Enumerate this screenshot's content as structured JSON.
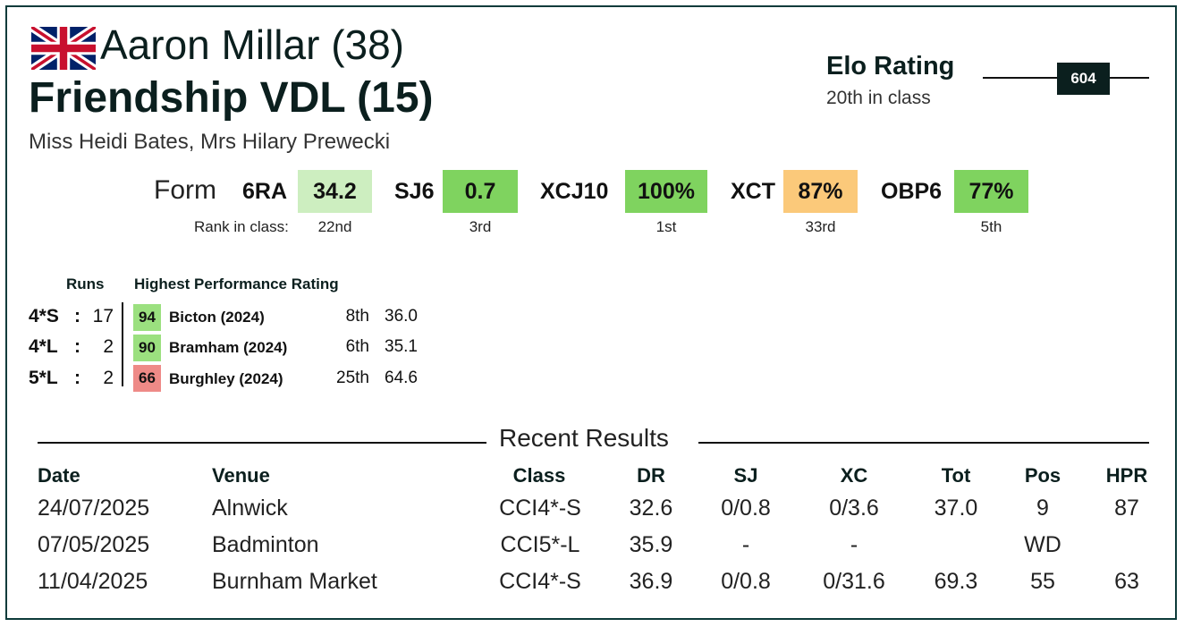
{
  "header": {
    "rider": "Aaron Millar (38)",
    "horse": "Friendship VDL (15)",
    "owners": "Miss Heidi Bates, Mrs Hilary Prewecki",
    "flag_icon": "uk-flag-icon"
  },
  "elo": {
    "title": "Elo Rating",
    "subtitle": "20th in class",
    "value": "604"
  },
  "form": {
    "label": "Form",
    "rank_label": "Rank in class:",
    "items": [
      {
        "name": "6RA",
        "value": "34.2",
        "rank": "22nd",
        "color": "#cdeec0"
      },
      {
        "name": "SJ6",
        "value": "0.7",
        "rank": "3rd",
        "color": "#7fd35f"
      },
      {
        "name": "XCJ10",
        "value": "100%",
        "rank": "1st",
        "color": "#7fd35f"
      },
      {
        "name": "XCT",
        "value": "87%",
        "rank": "33rd",
        "color": "#fbc97a"
      },
      {
        "name": "OBP6",
        "value": "77%",
        "rank": "5th",
        "color": "#7fd35f"
      }
    ]
  },
  "runs": {
    "runs_header": "Runs",
    "hpr_header": "Highest Performance Rating",
    "rows": [
      {
        "level": "4*S",
        "colon": ":",
        "count": "17",
        "hpr": "94",
        "event": "Bicton  (2024)",
        "pos": "8th",
        "score": "36.0",
        "color": "#9be07f"
      },
      {
        "level": "4*L",
        "colon": ":",
        "count": "2",
        "hpr": "90",
        "event": "Bramham  (2024)",
        "pos": "6th",
        "score": "35.1",
        "color": "#9be07f"
      },
      {
        "level": "5*L",
        "colon": ":",
        "count": "2",
        "hpr": "66",
        "event": "Burghley  (2024)",
        "pos": "25th",
        "score": "64.6",
        "color": "#ee8a87"
      }
    ]
  },
  "recent": {
    "title": "Recent Results",
    "headers": {
      "date": "Date",
      "venue": "Venue",
      "class": "Class",
      "dr": "DR",
      "sj": "SJ",
      "xc": "XC",
      "tot": "Tot",
      "pos": "Pos",
      "hpr": "HPR"
    },
    "rows": [
      {
        "date": "24/07/2025",
        "venue": "Alnwick",
        "class": "CCI4*-S",
        "dr": "32.6",
        "sj": "0/0.8",
        "xc": "0/3.6",
        "tot": "37.0",
        "pos": "9",
        "hpr": "87"
      },
      {
        "date": "07/05/2025",
        "venue": "Badminton",
        "class": "CCI5*-L",
        "dr": "35.9",
        "sj": "-",
        "xc": "-",
        "tot": "",
        "pos": "WD",
        "hpr": ""
      },
      {
        "date": "11/04/2025",
        "venue": "Burnham Market",
        "class": "CCI4*-S",
        "dr": "36.9",
        "sj": "0/0.8",
        "xc": "0/31.6",
        "tot": "69.3",
        "pos": "55",
        "hpr": "63"
      }
    ]
  }
}
